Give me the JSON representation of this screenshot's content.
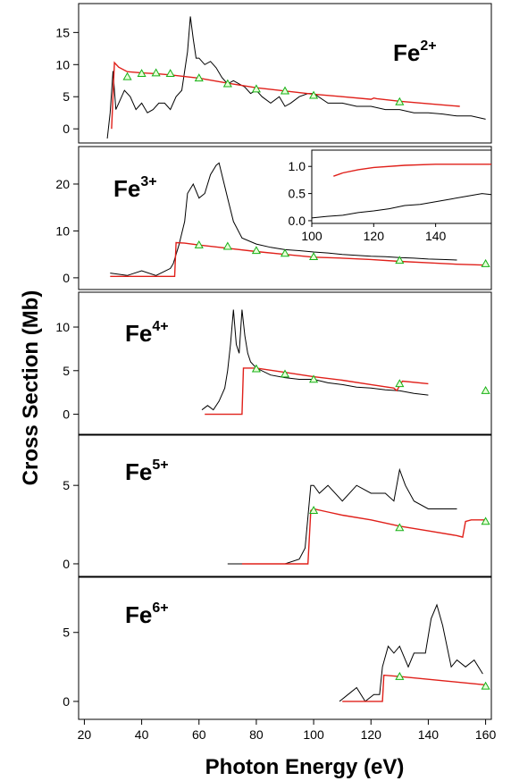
{
  "chart_data": {
    "type": "line",
    "xlabel": "Photon Energy (eV)",
    "ylabel": "Cross Section (Mb)",
    "xlim": [
      18,
      162
    ],
    "x_ticks": [
      20,
      40,
      60,
      80,
      100,
      120,
      140,
      160
    ],
    "colors": {
      "measured": "#000000",
      "calculated": "#e0201a",
      "markers": "#16b016"
    },
    "panels": [
      {
        "ion": "Fe",
        "charge": "2+",
        "ylim": [
          -2.2,
          19.5
        ],
        "y_ticks": [
          0,
          5,
          10,
          15
        ],
        "calculated": {
          "x": [
            29.5,
            30.5,
            32,
            35,
            40,
            45,
            50,
            60,
            70,
            80,
            90,
            100,
            110,
            120,
            121,
            122,
            130,
            140,
            151
          ],
          "y": [
            0,
            10.3,
            9.6,
            8.9,
            8.7,
            8.6,
            8.4,
            7.9,
            7.1,
            6.4,
            5.9,
            5.4,
            5.0,
            4.6,
            4.8,
            4.7,
            4.3,
            3.9,
            3.5
          ]
        },
        "markers": {
          "x": [
            35,
            40,
            45,
            50,
            60,
            70,
            80,
            90,
            100,
            130
          ],
          "y": [
            8.1,
            8.6,
            8.7,
            8.6,
            7.9,
            7.0,
            6.2,
            5.9,
            5.2,
            4.2
          ]
        },
        "measured": {
          "x": [
            28,
            29,
            30,
            31,
            32,
            34,
            36,
            38,
            40,
            42,
            44,
            46,
            48,
            50,
            52,
            54,
            55,
            56,
            57,
            58,
            59,
            60,
            62,
            64,
            66,
            68,
            70,
            72,
            74,
            76,
            78,
            80,
            82,
            85,
            88,
            90,
            92,
            95,
            98,
            100,
            105,
            110,
            115,
            120,
            125,
            130,
            135,
            140,
            145,
            150,
            155,
            160
          ],
          "y": [
            -1.5,
            2.5,
            9,
            3,
            4,
            6,
            5,
            3,
            4,
            2.5,
            3,
            4,
            4,
            3,
            5,
            6,
            9,
            12,
            17.5,
            14,
            11,
            11,
            10,
            10.5,
            9.5,
            8,
            7,
            7.5,
            7,
            6.5,
            5.5,
            6,
            5,
            4,
            5,
            3.5,
            4,
            5,
            5.5,
            5.5,
            4,
            4,
            3.5,
            3.5,
            3,
            3,
            2.5,
            2.5,
            2.3,
            2,
            2,
            1.5
          ]
        }
      },
      {
        "ion": "Fe",
        "charge": "3+",
        "ylim": [
          -2.5,
          28
        ],
        "y_ticks": [
          0,
          10,
          20
        ],
        "calculated": {
          "x": [
            29,
            51.5,
            52,
            55,
            60,
            70,
            80,
            90,
            100,
            110,
            120,
            130,
            140,
            150,
            160
          ],
          "y": [
            0.3,
            0.3,
            7.5,
            7.4,
            7.0,
            6.3,
            5.6,
            5.0,
            4.4,
            4.2,
            3.9,
            3.5,
            3.2,
            2.9,
            2.7
          ]
        },
        "markers": {
          "x": [
            60,
            70,
            80,
            90,
            100,
            130,
            160
          ],
          "y": [
            7.0,
            6.7,
            5.8,
            5.2,
            4.5,
            3.7,
            3.0
          ]
        },
        "measured": {
          "x": [
            29,
            35,
            40,
            45,
            50,
            51,
            52,
            53,
            55,
            56,
            58,
            60,
            62,
            64,
            66,
            67,
            68,
            70,
            72,
            75,
            80,
            85,
            90,
            95,
            100,
            105,
            110,
            115,
            120,
            125,
            130,
            135,
            140,
            145,
            150
          ],
          "y": [
            1,
            0.5,
            1.5,
            0.5,
            2,
            3,
            5,
            7,
            12,
            18,
            20,
            17,
            18,
            22,
            24,
            24.5,
            22,
            17,
            12,
            8.5,
            7.2,
            6.5,
            6,
            5.8,
            5.5,
            5.3,
            5,
            4.8,
            4.6,
            4.5,
            4.3,
            4.2,
            4,
            3.9,
            3.8
          ]
        },
        "inset": {
          "xlim": [
            100,
            158
          ],
          "ylim": [
            -0.05,
            1.3
          ],
          "x_ticks": [
            100,
            120,
            140
          ],
          "y_ticks": [
            0.0,
            0.5,
            1.0
          ],
          "y_tick_labels": [
            "0.0",
            "0.5",
            "1.0"
          ],
          "calculated": {
            "x": [
              107,
              110,
              115,
              120,
              130,
              140,
              150,
              158
            ],
            "y": [
              0.82,
              0.88,
              0.94,
              0.98,
              1.02,
              1.04,
              1.04,
              1.04
            ]
          },
          "measured": {
            "x": [
              100,
              105,
              110,
              115,
              120,
              125,
              130,
              135,
              140,
              145,
              150,
              155,
              158
            ],
            "y": [
              0.05,
              0.08,
              0.1,
              0.15,
              0.18,
              0.22,
              0.28,
              0.3,
              0.35,
              0.4,
              0.45,
              0.5,
              0.48
            ]
          }
        }
      },
      {
        "ion": "Fe",
        "charge": "4+",
        "ylim": [
          -2.3,
          14
        ],
        "y_ticks": [
          0,
          5,
          10
        ],
        "calculated": {
          "x": [
            62,
            75,
            75.5,
            80,
            90,
            100,
            110,
            120,
            128,
            129,
            131,
            140
          ],
          "y": [
            0,
            0,
            5.3,
            5.3,
            4.8,
            4.3,
            3.9,
            3.4,
            3.0,
            2.7,
            3.8,
            3.5
          ]
        },
        "markers": {
          "x": [
            80,
            90,
            100,
            130,
            160
          ],
          "y": [
            5.2,
            4.6,
            4.0,
            3.5,
            2.7
          ]
        },
        "measured": {
          "x": [
            61,
            63,
            65,
            67,
            69,
            70,
            71,
            72,
            73,
            74,
            75,
            76,
            77,
            78,
            80,
            85,
            90,
            95,
            100,
            105,
            110,
            115,
            120,
            125,
            130,
            135,
            140
          ],
          "y": [
            0.5,
            1,
            0.5,
            1.5,
            3,
            5,
            8,
            12,
            8,
            7,
            12,
            9,
            7,
            6,
            5.3,
            4.5,
            4.2,
            4,
            4,
            3.6,
            3.4,
            3.1,
            3,
            2.8,
            2.7,
            2.4,
            2.2
          ]
        }
      },
      {
        "ion": "Fe",
        "charge": "5+",
        "ylim": [
          -0.8,
          8.2
        ],
        "y_ticks": [
          0,
          5
        ],
        "calculated": {
          "x": [
            75,
            98,
            99,
            100,
            105,
            110,
            120,
            130,
            140,
            150,
            152,
            153,
            155,
            160
          ],
          "y": [
            0,
            0,
            3.4,
            3.5,
            3.3,
            3.1,
            2.8,
            2.4,
            2.1,
            1.8,
            1.7,
            2.7,
            2.8,
            2.8
          ]
        },
        "markers": {
          "x": [
            100,
            130,
            160
          ],
          "y": [
            3.4,
            2.3,
            2.7
          ]
        },
        "measured": {
          "x": [
            70,
            75,
            80,
            85,
            90,
            95,
            97,
            98,
            99,
            100,
            102,
            105,
            110,
            115,
            120,
            125,
            128,
            130,
            132,
            135,
            140,
            145,
            150
          ],
          "y": [
            0,
            0,
            0,
            0,
            0,
            0.3,
            1,
            3,
            5,
            5,
            4.5,
            5,
            4,
            5,
            4.5,
            4.5,
            4,
            6,
            5,
            4,
            3.5,
            3.5,
            3.5
          ]
        }
      },
      {
        "ion": "Fe",
        "charge": "6+",
        "ylim": [
          -1.3,
          9
        ],
        "y_ticks": [
          0,
          5
        ],
        "calculated": {
          "x": [
            110,
            124,
            124.5,
            130,
            140,
            150,
            160
          ],
          "y": [
            0,
            0,
            1.9,
            1.8,
            1.6,
            1.4,
            1.2
          ]
        },
        "markers": {
          "x": [
            130,
            160
          ],
          "y": [
            1.8,
            1.1
          ]
        },
        "measured": {
          "x": [
            109,
            112,
            115,
            118,
            121,
            123,
            124,
            126,
            128,
            130,
            133,
            135,
            137,
            139,
            141,
            143,
            145,
            148,
            150,
            153,
            156,
            159
          ],
          "y": [
            0,
            0.5,
            1,
            0,
            0.5,
            0.5,
            2.5,
            4,
            3.5,
            4,
            2.5,
            3.5,
            3.5,
            3.5,
            6,
            7,
            5.5,
            2.5,
            3,
            2.5,
            3,
            2
          ]
        }
      }
    ]
  }
}
